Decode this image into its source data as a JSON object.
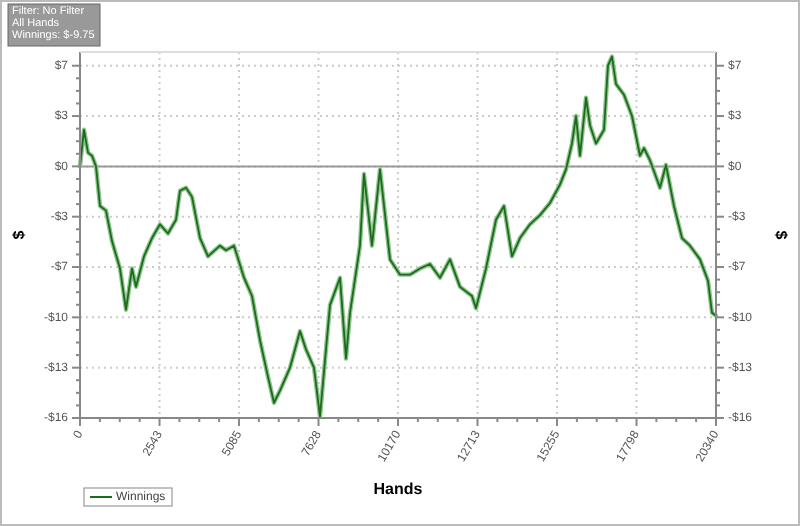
{
  "chart_data": {
    "type": "line",
    "xlabel": "Hands",
    "ylabel": "$",
    "y2label": "$",
    "annotations": [
      "Filter: No Filter",
      "All Hands",
      "Winnings: $-9.75"
    ],
    "x": [
      0,
      128,
      256,
      384,
      512,
      640,
      831,
      1023,
      1279,
      1471,
      1663,
      1791,
      2047,
      2303,
      2558,
      2814,
      3070,
      3198,
      3390,
      3582,
      3838,
      4093,
      4477,
      4669,
      4925,
      5245,
      5501,
      5756,
      6012,
      6204,
      6396,
      6716,
      7036,
      7227,
      7483,
      7675,
      7867,
      7995,
      8315,
      8507,
      8635,
      8954,
      9082,
      9338,
      9594,
      9914,
      10234,
      10553,
      10873,
      11193,
      11513,
      11833,
      12152,
      12536,
      12664,
      12984,
      13304,
      13560,
      13815,
      14071,
      14391,
      14711,
      15031,
      15350,
      15542,
      15734,
      15862,
      15990,
      16182,
      16310,
      16502,
      16758,
      16885,
      17013,
      17141,
      17397,
      17653,
      17909,
      18037,
      18229,
      18548,
      18740,
      18996,
      19252,
      19508,
      19828,
      20084,
      20212,
      20340
    ],
    "series": [
      {
        "name": "Winnings",
        "color": "#1a6b1a",
        "values": [
          0,
          2.4,
          0.9,
          0.7,
          0,
          -2.6,
          -2.9,
          -4.9,
          -6.7,
          -9.4,
          -6.7,
          -7.9,
          -5.9,
          -4.7,
          -3.8,
          -4.4,
          -3.5,
          -1.6,
          -1.4,
          -2,
          -4.7,
          -5.9,
          -5.2,
          -5.5,
          -5.2,
          -7.3,
          -8.5,
          -11.4,
          -13.8,
          -15.5,
          -14.7,
          -13.2,
          -10.8,
          -12,
          -13.2,
          -16.4,
          -12,
          -9.1,
          -7.3,
          -12.6,
          -9.6,
          -5.2,
          -0.5,
          -5.2,
          -0.2,
          -6.1,
          -7.1,
          -7.1,
          -6.7,
          -6.4,
          -7.3,
          -6.1,
          -7.9,
          -8.5,
          -9.3,
          -6.7,
          -3.5,
          -2.6,
          -5.9,
          -4.7,
          -3.8,
          -3.2,
          -2.4,
          -1.2,
          -0.2,
          1.5,
          3.3,
          0.7,
          4.5,
          2.7,
          1.5,
          2.4,
          6.6,
          7.2,
          5.4,
          4.7,
          3.3,
          0.7,
          1.2,
          0.4,
          -1.4,
          0.1,
          -2.6,
          -4.7,
          -5.2,
          -6.1,
          -7.5,
          -9.6,
          -9.8
        ]
      }
    ],
    "xlim": [
      0,
      20340
    ],
    "xticks": [
      0,
      2543,
      5085,
      7628,
      10170,
      12713,
      15255,
      17798,
      20340
    ],
    "ylim": [
      -16.5,
      7.5
    ],
    "yticks": [
      {
        "value": -16.5,
        "label": "-$16"
      },
      {
        "value": -13.2,
        "label": "-$13"
      },
      {
        "value": -9.9,
        "label": "-$10"
      },
      {
        "value": -6.6,
        "label": "-$7"
      },
      {
        "value": -3.3,
        "label": "-$3"
      },
      {
        "value": 0,
        "label": "$0"
      },
      {
        "value": 3.3,
        "label": "$3"
      },
      {
        "value": 6.6,
        "label": "$7"
      }
    ],
    "y2lim": [
      -16.5,
      7.5
    ],
    "y2ticks": [
      {
        "value": -16.5,
        "label": "-$16"
      },
      {
        "value": -13.2,
        "label": "-$13"
      },
      {
        "value": -9.9,
        "label": "-$10"
      },
      {
        "value": -6.6,
        "label": "-$7"
      },
      {
        "value": -3.3,
        "label": "-$3"
      },
      {
        "value": 0,
        "label": "$0"
      },
      {
        "value": 3.3,
        "label": "$3"
      },
      {
        "value": 6.6,
        "label": "$7"
      }
    ],
    "ref_lines": [
      {
        "axis": "y",
        "value": 0,
        "color": "#999999"
      }
    ],
    "grid": true,
    "legend": "bottom left",
    "marker": "none",
    "line_style": "solid"
  }
}
